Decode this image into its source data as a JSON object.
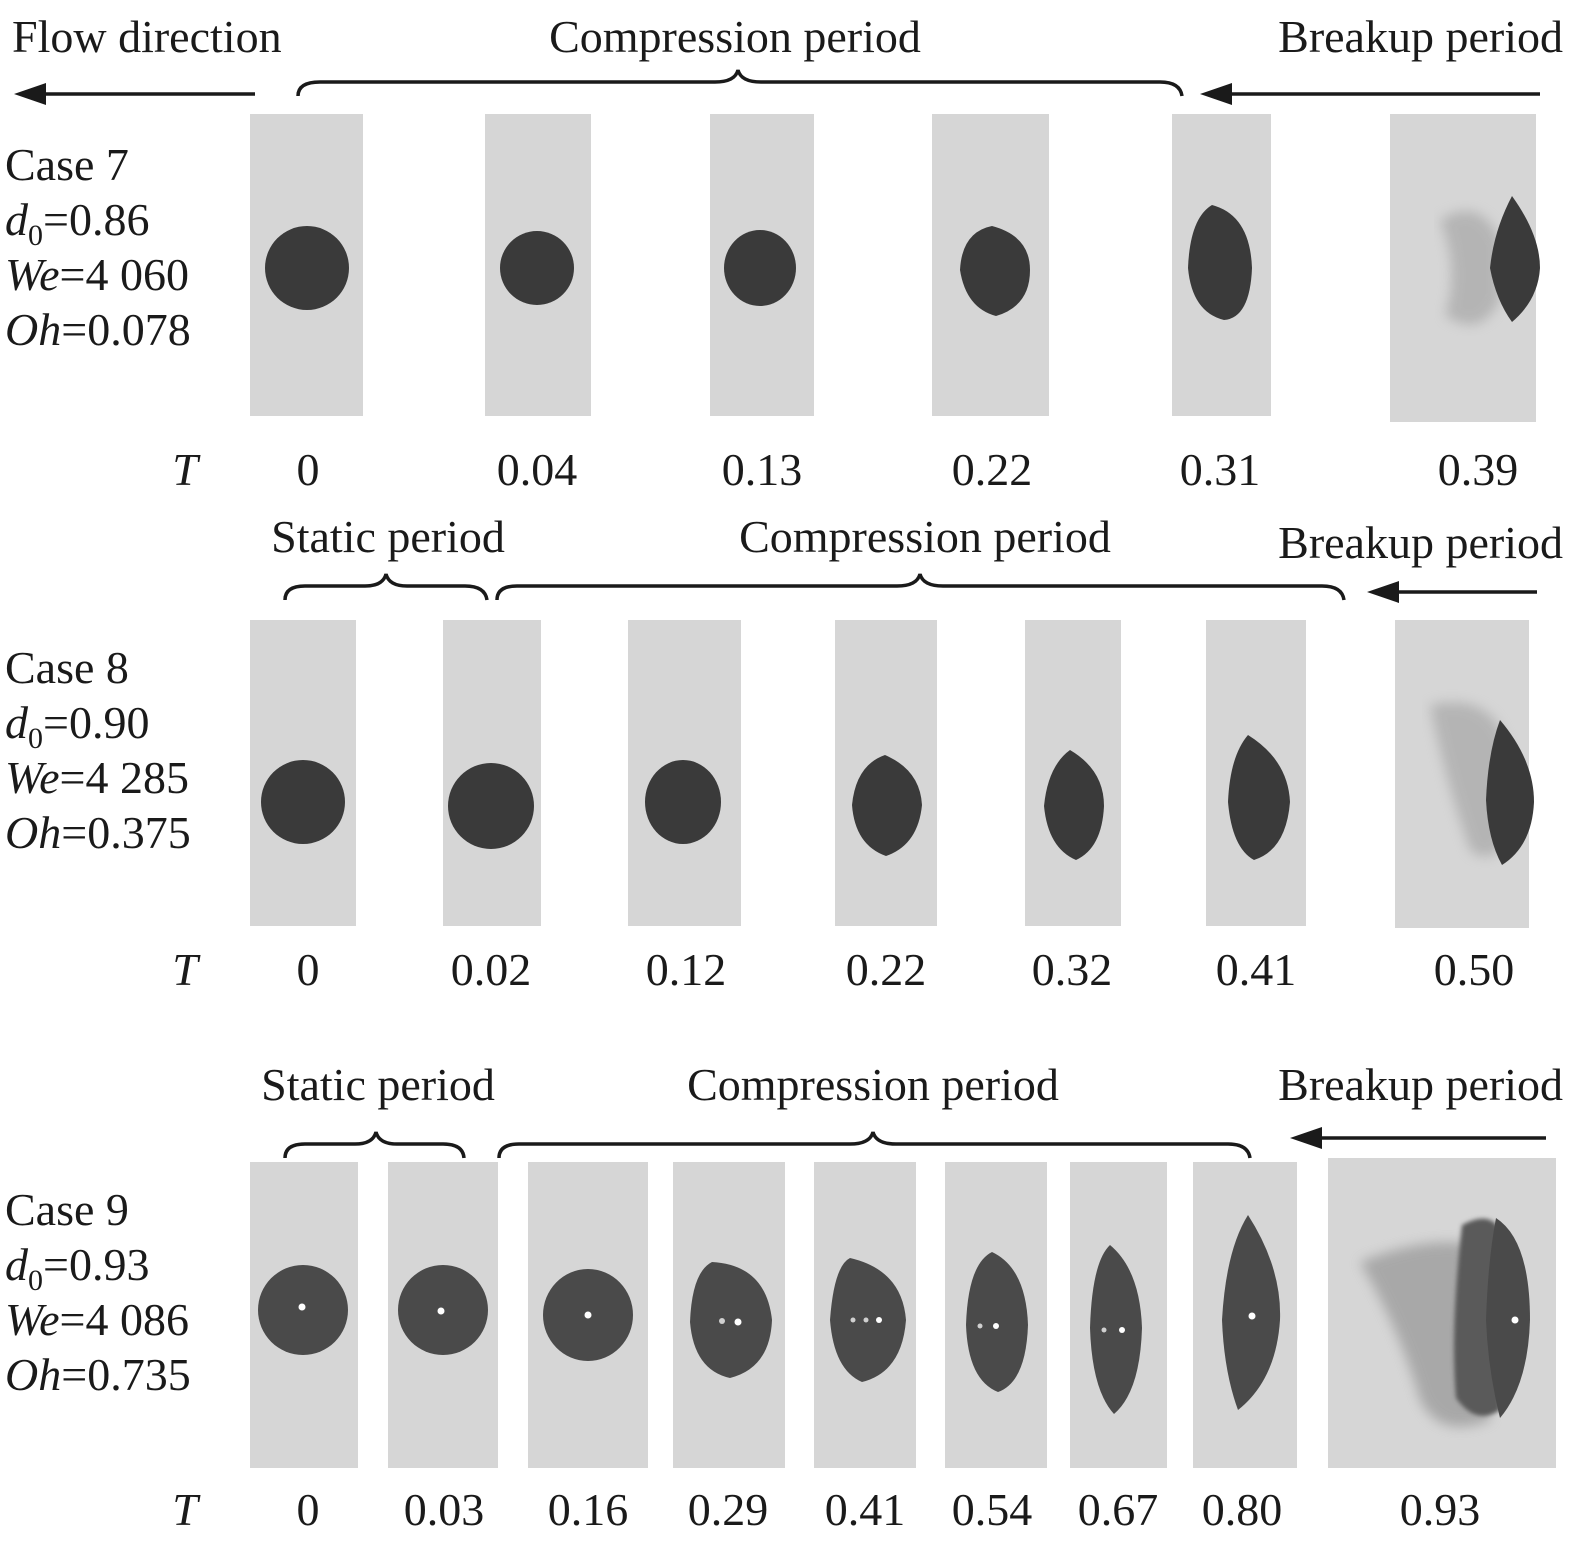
{
  "header": {
    "flow_direction": "Flow direction"
  },
  "rows": [
    {
      "case": "Case 7",
      "d0": "0.86",
      "we": "4 060",
      "oh": "0.078",
      "t_symbol": "T",
      "periods": {
        "compression": "Compression period",
        "breakup": "Breakup period"
      },
      "t_values": [
        "0",
        "0.04",
        "0.13",
        "0.22",
        "0.31",
        "0.39"
      ]
    },
    {
      "case": "Case 8",
      "d0": "0.90",
      "we": "4 285",
      "oh": "0.375",
      "t_symbol": "T",
      "periods": {
        "static": "Static period",
        "compression": "Compression period",
        "breakup": "Breakup period"
      },
      "t_values": [
        "0",
        "0.02",
        "0.12",
        "0.22",
        "0.32",
        "0.41",
        "0.50"
      ]
    },
    {
      "case": "Case 9",
      "d0": "0.93",
      "we": "4 086",
      "oh": "0.735",
      "t_symbol": "T",
      "periods": {
        "static": "Static period",
        "compression": "Compression period",
        "breakup": "Breakup period"
      },
      "t_values": [
        "0",
        "0.03",
        "0.16",
        "0.29",
        "0.41",
        "0.54",
        "0.67",
        "0.80",
        "0.93"
      ]
    }
  ],
  "param_symbols": {
    "d": "d",
    "d_sub": "0",
    "we": "We",
    "oh": "Oh"
  }
}
